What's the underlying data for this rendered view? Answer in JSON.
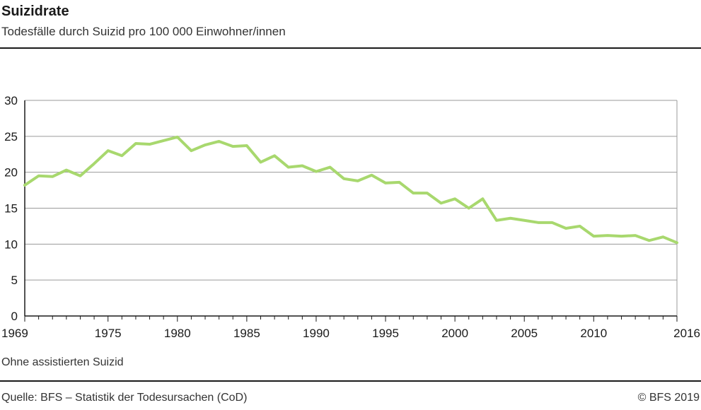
{
  "header": {
    "title": "Suizidrate",
    "subtitle": "Todesfälle durch Suizid pro 100 000 Einwohner/innen"
  },
  "footer": {
    "note": "Ohne assistierten Suizid",
    "source": "Quelle: BFS – Statistik der Todesursachen (CoD)",
    "copyright": "© BFS 2019"
  },
  "chart_data": {
    "type": "line",
    "title": "Suizidrate",
    "subtitle": "Todesfälle durch Suizid pro 100 000 Einwohner/innen",
    "xlabel": "",
    "ylabel": "",
    "xlim": [
      1969,
      2016
    ],
    "ylim": [
      0,
      30
    ],
    "x_ticks": [
      1969,
      1975,
      1980,
      1985,
      1990,
      1995,
      2000,
      2005,
      2010,
      2016
    ],
    "y_ticks": [
      0,
      5,
      10,
      15,
      20,
      25,
      30
    ],
    "grid": true,
    "line_color": "#a8d86e",
    "x": [
      1969,
      1970,
      1971,
      1972,
      1973,
      1974,
      1975,
      1976,
      1977,
      1978,
      1979,
      1980,
      1981,
      1982,
      1983,
      1984,
      1985,
      1986,
      1987,
      1988,
      1989,
      1990,
      1991,
      1992,
      1993,
      1994,
      1995,
      1996,
      1997,
      1998,
      1999,
      2000,
      2001,
      2002,
      2003,
      2004,
      2005,
      2006,
      2007,
      2008,
      2009,
      2010,
      2011,
      2012,
      2013,
      2014,
      2015,
      2016
    ],
    "series": [
      {
        "name": "",
        "values": [
          18.2,
          19.5,
          19.4,
          20.3,
          19.5,
          21.2,
          23.0,
          22.3,
          24.0,
          23.9,
          24.4,
          24.9,
          23.0,
          23.8,
          24.3,
          23.6,
          23.7,
          21.4,
          22.3,
          20.7,
          20.9,
          20.1,
          20.7,
          19.1,
          18.8,
          19.6,
          18.5,
          18.6,
          17.1,
          17.1,
          15.7,
          16.3,
          15.0,
          16.3,
          13.3,
          13.6,
          13.3,
          13.0,
          13.0,
          12.2,
          12.5,
          11.1,
          11.2,
          11.1,
          11.2,
          10.5,
          11.0,
          10.2
        ]
      }
    ]
  }
}
